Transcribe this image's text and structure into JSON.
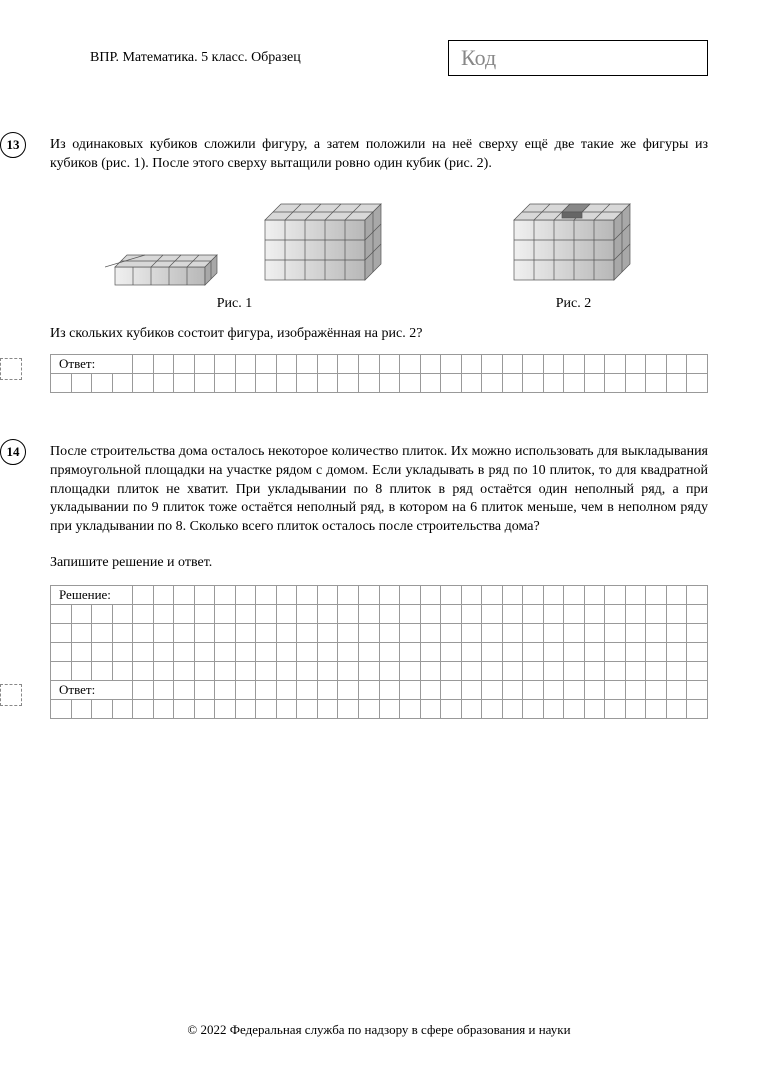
{
  "header": {
    "title": "ВПР. Математика. 5 класс. Образец",
    "code_label": "Код"
  },
  "task13": {
    "number": "13",
    "text": "Из одинаковых кубиков сложили фигуру, а затем положили на неё сверху ещё две такие же фигуры из кубиков (рис. 1). После этого сверху вытащили ровно один кубик (рис. 2).",
    "fig1_caption": "Рис. 1",
    "fig2_caption": "Рис. 2",
    "question": "Из скольких кубиков состоит фигура, изображённая на рис. 2?",
    "answer_label": "Ответ:",
    "grid": {
      "rows": 2,
      "cols": 32,
      "label_span": 4,
      "cell_size": 19,
      "border_color": "#999999"
    }
  },
  "task14": {
    "number": "14",
    "text": "После строительства дома осталось некоторое количество плиток. Их можно использовать для выкладывания прямоугольной площадки на участке рядом с домом. Если укладывать в ряд по 10 плиток, то для квадратной площадки плиток не хватит. При укладывании по 8 плиток в ряд остаётся один неполный ряд, а при укладывании по 9 плиток тоже остаётся неполный ряд, в котором на 6 плиток меньше, чем в неполном ряду при укладывании по 8. Сколько всего плиток осталось после строительства дома?",
    "instruction": "Запишите решение и ответ.",
    "solution_label": "Решение:",
    "answer_label": "Ответ:",
    "solution_grid": {
      "rows": 5,
      "cols": 32,
      "label_span": 4,
      "cell_size": 19,
      "border_color": "#999999"
    },
    "answer_grid": {
      "rows": 2,
      "cols": 32,
      "label_span": 4,
      "cell_size": 19,
      "border_color": "#999999"
    }
  },
  "figures": {
    "cube_fill_light": "#e8e8e8",
    "cube_fill_mid": "#c8c8c8",
    "cube_fill_dark": "#a0a0a0",
    "cube_stroke": "#555555",
    "cube_stroke_width": 0.7
  },
  "footer": "© 2022 Федеральная служба по надзору в сфере образования и науки"
}
